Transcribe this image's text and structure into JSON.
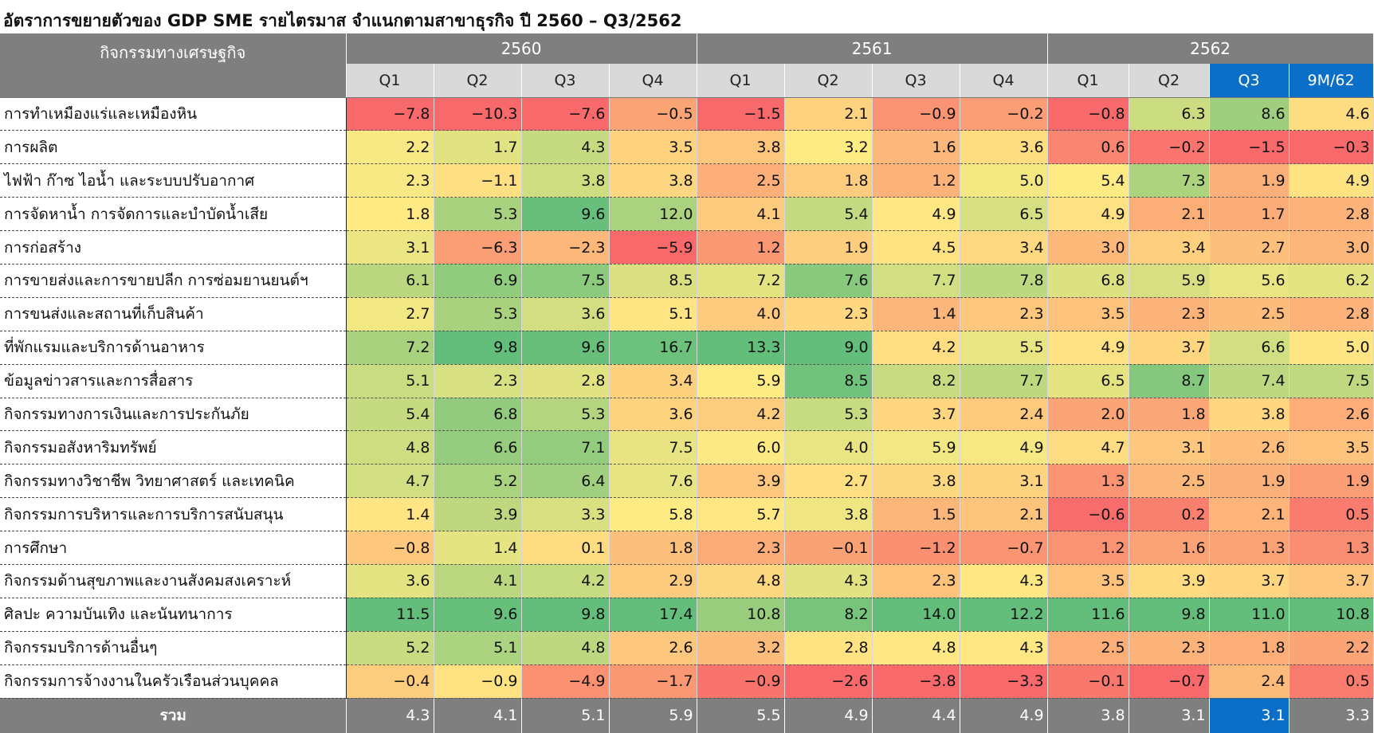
{
  "title": "อัตราการขยายตัวของ GDP SME รายไตรมาส จำแนกตามสาขาธุรกิจ ปี 2560 – Q3/2562",
  "header": {
    "corner_label": "กิจกรรมทางเศรษฐกิจ",
    "years": [
      "2560",
      "2561",
      "2562"
    ],
    "quarters": [
      "Q1",
      "Q2",
      "Q3",
      "Q4",
      "Q1",
      "Q2",
      "Q3",
      "Q4",
      "Q1",
      "Q2",
      "Q3",
      "9M/62"
    ]
  },
  "colors": {
    "header_gray": "#7f7f7f",
    "subheader_gray": "#d9d9d9",
    "highlight_blue": "#0b6fc7",
    "scale_low": "#f8696b",
    "scale_mid": "#ffeb84",
    "scale_high": "#63be7b"
  },
  "chart_data": {
    "type": "heatmap",
    "title": "อัตราการขยายตัวของ GDP SME รายไตรมาส จำแนกตามสาขาธุรกิจ ปี 2560 – Q3/2562",
    "columns": [
      "2560 Q1",
      "2560 Q2",
      "2560 Q3",
      "2560 Q4",
      "2561 Q1",
      "2561 Q2",
      "2561 Q3",
      "2561 Q4",
      "2562 Q1",
      "2562 Q2",
      "2562 Q3",
      "2562 9M/62"
    ],
    "rows": [
      {
        "label": "การทำเหมืองแร่และเหมืองหิน",
        "values": [
          "-7.8",
          "-10.3",
          "-7.6",
          "-0.5",
          "-1.5",
          "2.1",
          "-0.9",
          "-0.2",
          "-0.8",
          "6.3",
          "8.6",
          "4.6"
        ]
      },
      {
        "label": "การผลิต",
        "values": [
          "2.2",
          "1.7",
          "4.3",
          "3.5",
          "3.8",
          "3.2",
          "1.6",
          "3.6",
          "0.6",
          "-0.2",
          "-1.5",
          "-0.3"
        ]
      },
      {
        "label": "ไฟฟ้า ก๊าซ ไอน้ำ และระบบปรับอากาศ",
        "values": [
          "2.3",
          "-1.1",
          "3.8",
          "3.8",
          "2.5",
          "1.8",
          "1.2",
          "5.0",
          "5.4",
          "7.3",
          "1.9",
          "4.9"
        ]
      },
      {
        "label": "การจัดหาน้ำ การจัดการและบำบัดน้ำเสีย",
        "values": [
          "1.8",
          "5.3",
          "9.6",
          "12.0",
          "4.1",
          "5.4",
          "4.9",
          "6.5",
          "4.9",
          "2.1",
          "1.7",
          "2.8"
        ]
      },
      {
        "label": "การก่อสร้าง",
        "values": [
          "3.1",
          "-6.3",
          "-2.3",
          "-5.9",
          "1.2",
          "1.9",
          "4.5",
          "3.4",
          "3.0",
          "3.4",
          "2.7",
          "3.0"
        ]
      },
      {
        "label": "การขายส่งและการขายปลีก การซ่อมยานยนต์ฯ",
        "values": [
          "6.1",
          "6.9",
          "7.5",
          "8.5",
          "7.2",
          "7.6",
          "7.7",
          "7.8",
          "6.8",
          "5.9",
          "5.6",
          "6.2"
        ]
      },
      {
        "label": "การขนส่งและสถานที่เก็บสินค้า",
        "values": [
          "2.7",
          "5.3",
          "3.6",
          "5.1",
          "4.0",
          "2.3",
          "1.4",
          "2.3",
          "3.5",
          "2.3",
          "2.5",
          "2.8"
        ]
      },
      {
        "label": "ที่พักแรมและบริการด้านอาหาร",
        "values": [
          "7.2",
          "9.8",
          "9.6",
          "16.7",
          "13.3",
          "9.0",
          "4.2",
          "5.5",
          "4.9",
          "3.7",
          "6.6",
          "5.0"
        ]
      },
      {
        "label": "ข้อมูลข่าวสารและการสื่อสาร",
        "values": [
          "5.1",
          "2.3",
          "2.8",
          "3.4",
          "5.9",
          "8.5",
          "8.2",
          "7.7",
          "6.5",
          "8.7",
          "7.4",
          "7.5"
        ]
      },
      {
        "label": "กิจกรรมทางการเงินและการประกันภัย",
        "values": [
          "5.4",
          "6.8",
          "5.3",
          "3.6",
          "4.2",
          "5.3",
          "3.7",
          "2.4",
          "2.0",
          "1.8",
          "3.8",
          "2.6"
        ]
      },
      {
        "label": "กิจกรรมอสังหาริมทรัพย์",
        "values": [
          "4.8",
          "6.6",
          "7.1",
          "7.5",
          "6.0",
          "4.0",
          "5.9",
          "4.9",
          "4.7",
          "3.1",
          "2.6",
          "3.5"
        ]
      },
      {
        "label": "กิจกรรมทางวิชาชีพ วิทยาศาสตร์ และเทคนิค",
        "values": [
          "4.7",
          "5.2",
          "6.4",
          "7.6",
          "3.9",
          "2.7",
          "3.8",
          "3.1",
          "1.3",
          "2.5",
          "1.9",
          "1.9"
        ]
      },
      {
        "label": "กิจกรรมการบริหารและการบริการสนับสนุน",
        "values": [
          "1.4",
          "3.9",
          "3.3",
          "5.8",
          "5.7",
          "3.8",
          "1.5",
          "2.1",
          "-0.6",
          "0.2",
          "2.1",
          "0.5"
        ]
      },
      {
        "label": "การศึกษา",
        "values": [
          "-0.8",
          "1.4",
          "0.1",
          "1.8",
          "2.3",
          "-0.1",
          "-1.2",
          "-0.7",
          "1.2",
          "1.6",
          "1.3",
          "1.3"
        ]
      },
      {
        "label": "กิจกรรมด้านสุขภาพและงานสังคมสงเคราะห์",
        "values": [
          "3.6",
          "4.1",
          "4.2",
          "2.9",
          "4.8",
          "4.3",
          "2.3",
          "4.3",
          "3.5",
          "3.9",
          "3.7",
          "3.7"
        ]
      },
      {
        "label": "ศิลปะ ความบันเทิง และนันทนาการ",
        "values": [
          "11.5",
          "9.6",
          "9.8",
          "17.4",
          "10.8",
          "8.2",
          "14.0",
          "12.2",
          "11.6",
          "9.8",
          "11.0",
          "10.8"
        ]
      },
      {
        "label": "กิจกรรมบริการด้านอื่นๆ",
        "values": [
          "5.2",
          "5.1",
          "4.8",
          "2.6",
          "3.2",
          "2.8",
          "4.8",
          "4.3",
          "2.5",
          "2.3",
          "1.8",
          "2.2"
        ]
      },
      {
        "label": "กิจกรรมการจ้างงานในครัวเรือนส่วนบุคคล",
        "values": [
          "-0.4",
          "-0.9",
          "-4.9",
          "-1.7",
          "-0.9",
          "-2.6",
          "-3.8",
          "-3.3",
          "-0.1",
          "-0.7",
          "2.4",
          "0.5"
        ]
      }
    ],
    "total": {
      "label": "รวม",
      "values": [
        "4.3",
        "4.1",
        "5.1",
        "5.9",
        "5.5",
        "4.9",
        "4.4",
        "4.9",
        "3.8",
        "3.1",
        "3.1",
        "3.3"
      ]
    },
    "color_scale": "per-column red-yellow-green (low = red, high = green)"
  }
}
